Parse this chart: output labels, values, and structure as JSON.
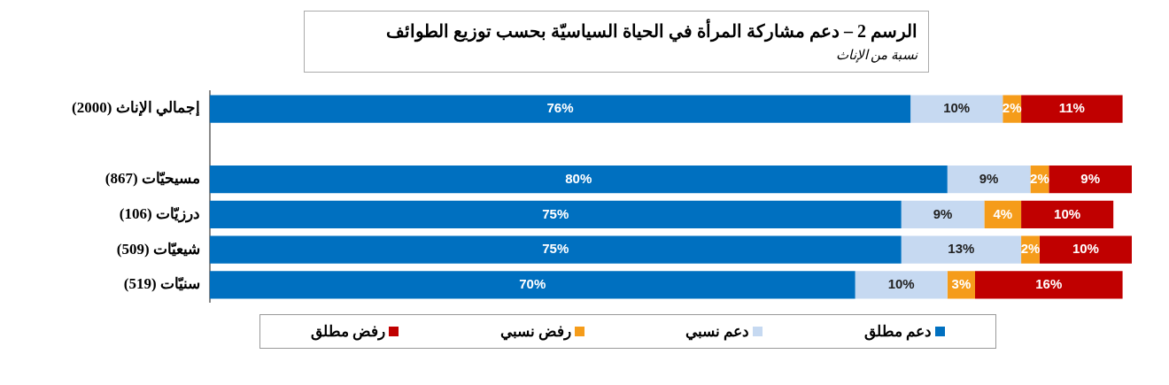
{
  "chart_data": {
    "type": "bar",
    "orientation": "horizontal",
    "stacked": true,
    "title": "الرسم 2 –  دعم مشاركة المرأة في الحياة السياسيّة بحسب توزيع الطوائف",
    "subtitle": "نسبة من الإناث",
    "categories": [
      "إجمالي الإناث (2000)",
      null,
      "مسيحيّات (867)",
      "درزيّات (106)",
      "شيعيّات (509)",
      "سنيّات (519)"
    ],
    "series": [
      {
        "name": "دعم مطلق",
        "color": "#0070c0",
        "values": [
          76,
          null,
          80,
          75,
          75,
          70
        ],
        "value_labels": [
          "76%",
          null,
          "80%",
          "75%",
          "75%",
          "70%"
        ]
      },
      {
        "name": "دعم نسبي",
        "color": "#c6d9f1",
        "values": [
          10,
          null,
          9,
          9,
          13,
          10
        ],
        "value_labels": [
          "10%",
          null,
          "9%",
          "9%",
          "13%",
          "10%"
        ]
      },
      {
        "name": "رفض نسبي",
        "color": "#f59c1a",
        "values": [
          2,
          null,
          2,
          4,
          2,
          3
        ],
        "value_labels": [
          "2%",
          null,
          "2%",
          "4%",
          "2%",
          "3%"
        ]
      },
      {
        "name": "رفض مطلق",
        "color": "#c00000",
        "values": [
          11,
          null,
          9,
          10,
          10,
          16
        ],
        "value_labels": [
          "11%",
          null,
          "9%",
          "10%",
          "10%",
          "16%"
        ]
      }
    ],
    "legend": "bottom",
    "grid": false
  }
}
